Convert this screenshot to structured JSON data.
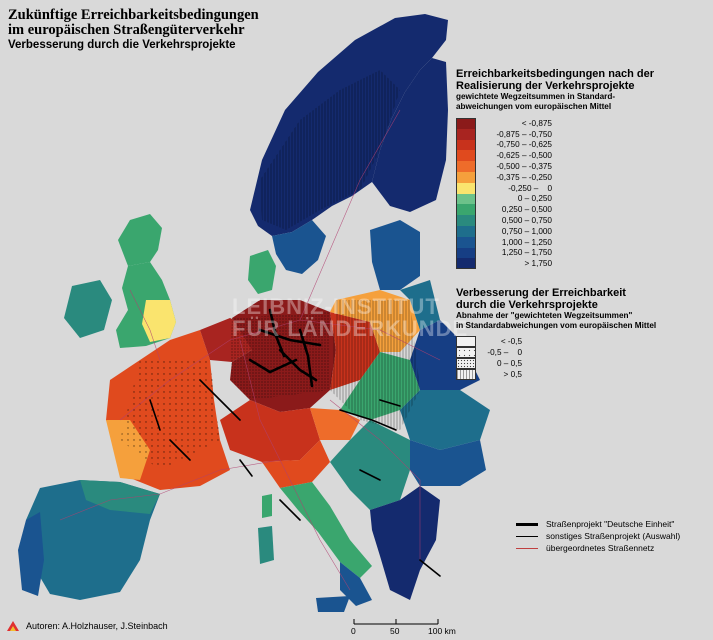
{
  "title": {
    "line1": "Zukünftige Erreichbarkeitsbedingungen",
    "line2": "im europäischen Straßengüterverkehr",
    "line3": "Verbesserung durch die Verkehrsprojekte"
  },
  "legend_access": {
    "title_line1": "Erreichbarkeitsbedingungen nach der",
    "title_line2": "Realisierung der Verkehrsprojekte",
    "sub_line1": "gewichtete Wegzeitsummen in Standard-",
    "sub_line2": "abweichungen vom europäischen Mittel",
    "classes": [
      {
        "label": "< -0,875",
        "color": "#8b1a1a"
      },
      {
        "label": "-0,875 – -0,750",
        "color": "#a82420"
      },
      {
        "label": "-0,750 – -0,625",
        "color": "#c8321c"
      },
      {
        "label": "-0,625 – -0,500",
        "color": "#e04a1e"
      },
      {
        "label": "-0,500 – -0,375",
        "color": "#ee6c2a"
      },
      {
        "label": "-0,375 – -0,250",
        "color": "#f5a03c"
      },
      {
        "label": "-0,250 –    0",
        "color": "#fae46e"
      },
      {
        "label": "0 – 0,250",
        "color": "#6cc28a"
      },
      {
        "label": "0,250 – 0,500",
        "color": "#3aa66e"
      },
      {
        "label": "0,500 – 0,750",
        "color": "#2a8a7e"
      },
      {
        "label": "0,750 – 1,000",
        "color": "#1e6e8c"
      },
      {
        "label": "1,000 – 1,250",
        "color": "#1a5490"
      },
      {
        "label": "1,250 – 1,750",
        "color": "#163e84"
      },
      {
        "label": "> 1,750",
        "color": "#142a6e"
      }
    ]
  },
  "legend_improvement": {
    "title_line1": "Verbesserung der Erreichbarkeit",
    "title_line2": "durch die Verkehrsprojekte",
    "sub_line1": "Abnahme der \"gewichteten Wegzeitsummen\"",
    "sub_line2": "in Standardabweichungen vom europäischen Mittel",
    "classes": [
      {
        "label": "< -0,5",
        "pattern": "none"
      },
      {
        "label": "-0,5 –    0",
        "pattern": "dots"
      },
      {
        "label": "0 – 0,5",
        "pattern": "dense-dots"
      },
      {
        "label": "> 0,5",
        "pattern": "lines"
      }
    ]
  },
  "legend_roads": {
    "items": [
      {
        "label": "Straßenprojekt \"Deutsche Einheit\"",
        "color": "#000000",
        "weight": "heavy"
      },
      {
        "label": "sonstiges Straßenprojekt (Auswahl)",
        "color": "#000000",
        "weight": "medium"
      },
      {
        "label": "übergeordnetes Straßennetz",
        "color": "#c04040",
        "weight": "thin"
      }
    ]
  },
  "watermark": {
    "line1": "LEIBNIZ-INSTITUT",
    "line2": "FÜR LÄNDERKUNDE"
  },
  "authors": "Autoren:  A.Holzhauser, J.Steinbach",
  "scalebar": {
    "ticks": [
      "0",
      "50",
      "100 km"
    ]
  },
  "colors": {
    "sea": "#d9d9d9",
    "border_lines": "#9a5aa0"
  }
}
